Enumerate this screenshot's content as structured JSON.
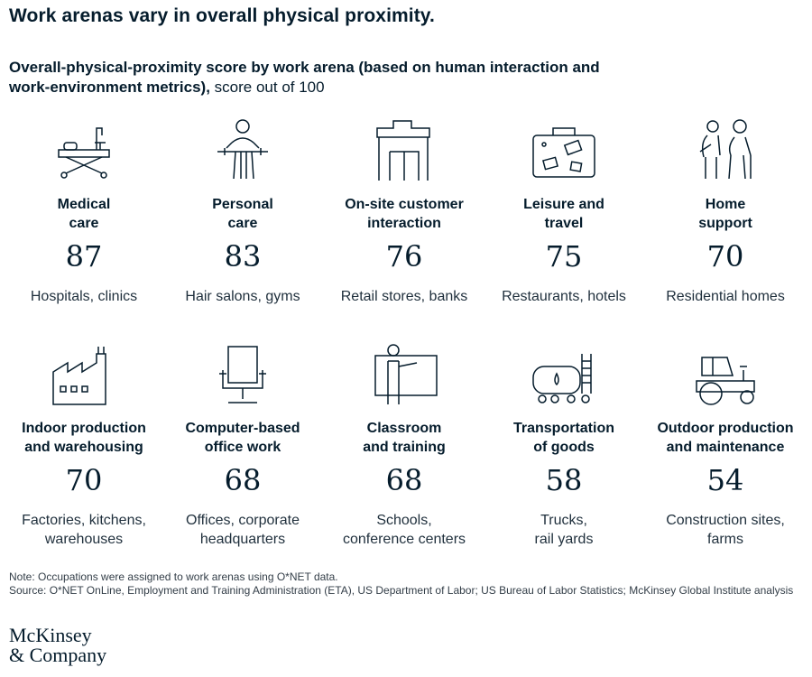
{
  "title": "Work arenas vary in overall physical proximity.",
  "subtitle_bold": "Overall-physical-proximity score by work arena (based on human interaction and work-environment metrics),",
  "subtitle_regular": " score out of 100",
  "chart_data": {
    "type": "table",
    "categories": [
      "Medical care",
      "Personal care",
      "On-site customer interaction",
      "Leisure and travel",
      "Home support",
      "Indoor production and warehousing",
      "Computer-based office work",
      "Classroom and training",
      "Transportation of goods",
      "Outdoor production and maintenance"
    ],
    "values": [
      87,
      83,
      76,
      75,
      70,
      70,
      68,
      68,
      58,
      54
    ],
    "items": [
      {
        "label_line1": "Medical",
        "label_line2": "care",
        "score": "87",
        "desc_line1": "Hospitals, clinics",
        "desc_line2": "",
        "icon": "hospital-bed-icon"
      },
      {
        "label_line1": "Personal",
        "label_line2": "care",
        "score": "83",
        "desc_line1": "Hair salons, gyms",
        "desc_line2": "",
        "icon": "hair-salon-icon"
      },
      {
        "label_line1": "On-site customer",
        "label_line2": "interaction",
        "score": "76",
        "desc_line1": "Retail stores, banks",
        "desc_line2": "",
        "icon": "storefront-icon"
      },
      {
        "label_line1": "Leisure and",
        "label_line2": "travel",
        "score": "75",
        "desc_line1": "Restaurants, hotels",
        "desc_line2": "",
        "icon": "suitcase-icon"
      },
      {
        "label_line1": "Home",
        "label_line2": "support",
        "score": "70",
        "desc_line1": "Residential homes",
        "desc_line2": "",
        "icon": "caregiver-icon"
      },
      {
        "label_line1": "Indoor production",
        "label_line2": "and warehousing",
        "score": "70",
        "desc_line1": "Factories, kitchens,",
        "desc_line2": "warehouses",
        "icon": "factory-icon"
      },
      {
        "label_line1": "Computer-based",
        "label_line2": "office work",
        "score": "68",
        "desc_line1": "Offices, corporate",
        "desc_line2": "headquarters",
        "icon": "office-chair-icon"
      },
      {
        "label_line1": "Classroom",
        "label_line2": "and training",
        "score": "68",
        "desc_line1": "Schools,",
        "desc_line2": "conference centers",
        "icon": "teacher-board-icon"
      },
      {
        "label_line1": "Transportation",
        "label_line2": "of goods",
        "score": "58",
        "desc_line1": "Trucks,",
        "desc_line2": "rail yards",
        "icon": "tanker-car-icon"
      },
      {
        "label_line1": "Outdoor production",
        "label_line2": "and maintenance",
        "score": "54",
        "desc_line1": "Construction sites,",
        "desc_line2": "farms",
        "icon": "tractor-icon"
      }
    ]
  },
  "note": "Note: Occupations were assigned to work arenas using O*NET data.",
  "source": "Source: O*NET OnLine, Employment and Training Administration (ETA), US Department of Labor; US Bureau of Labor Statistics; McKinsey Global Institute analysis",
  "logo_line1": "McKinsey",
  "logo_line2": "& Company",
  "colors": {
    "text": "#051c2c",
    "icon_stroke": "#051c2c"
  }
}
